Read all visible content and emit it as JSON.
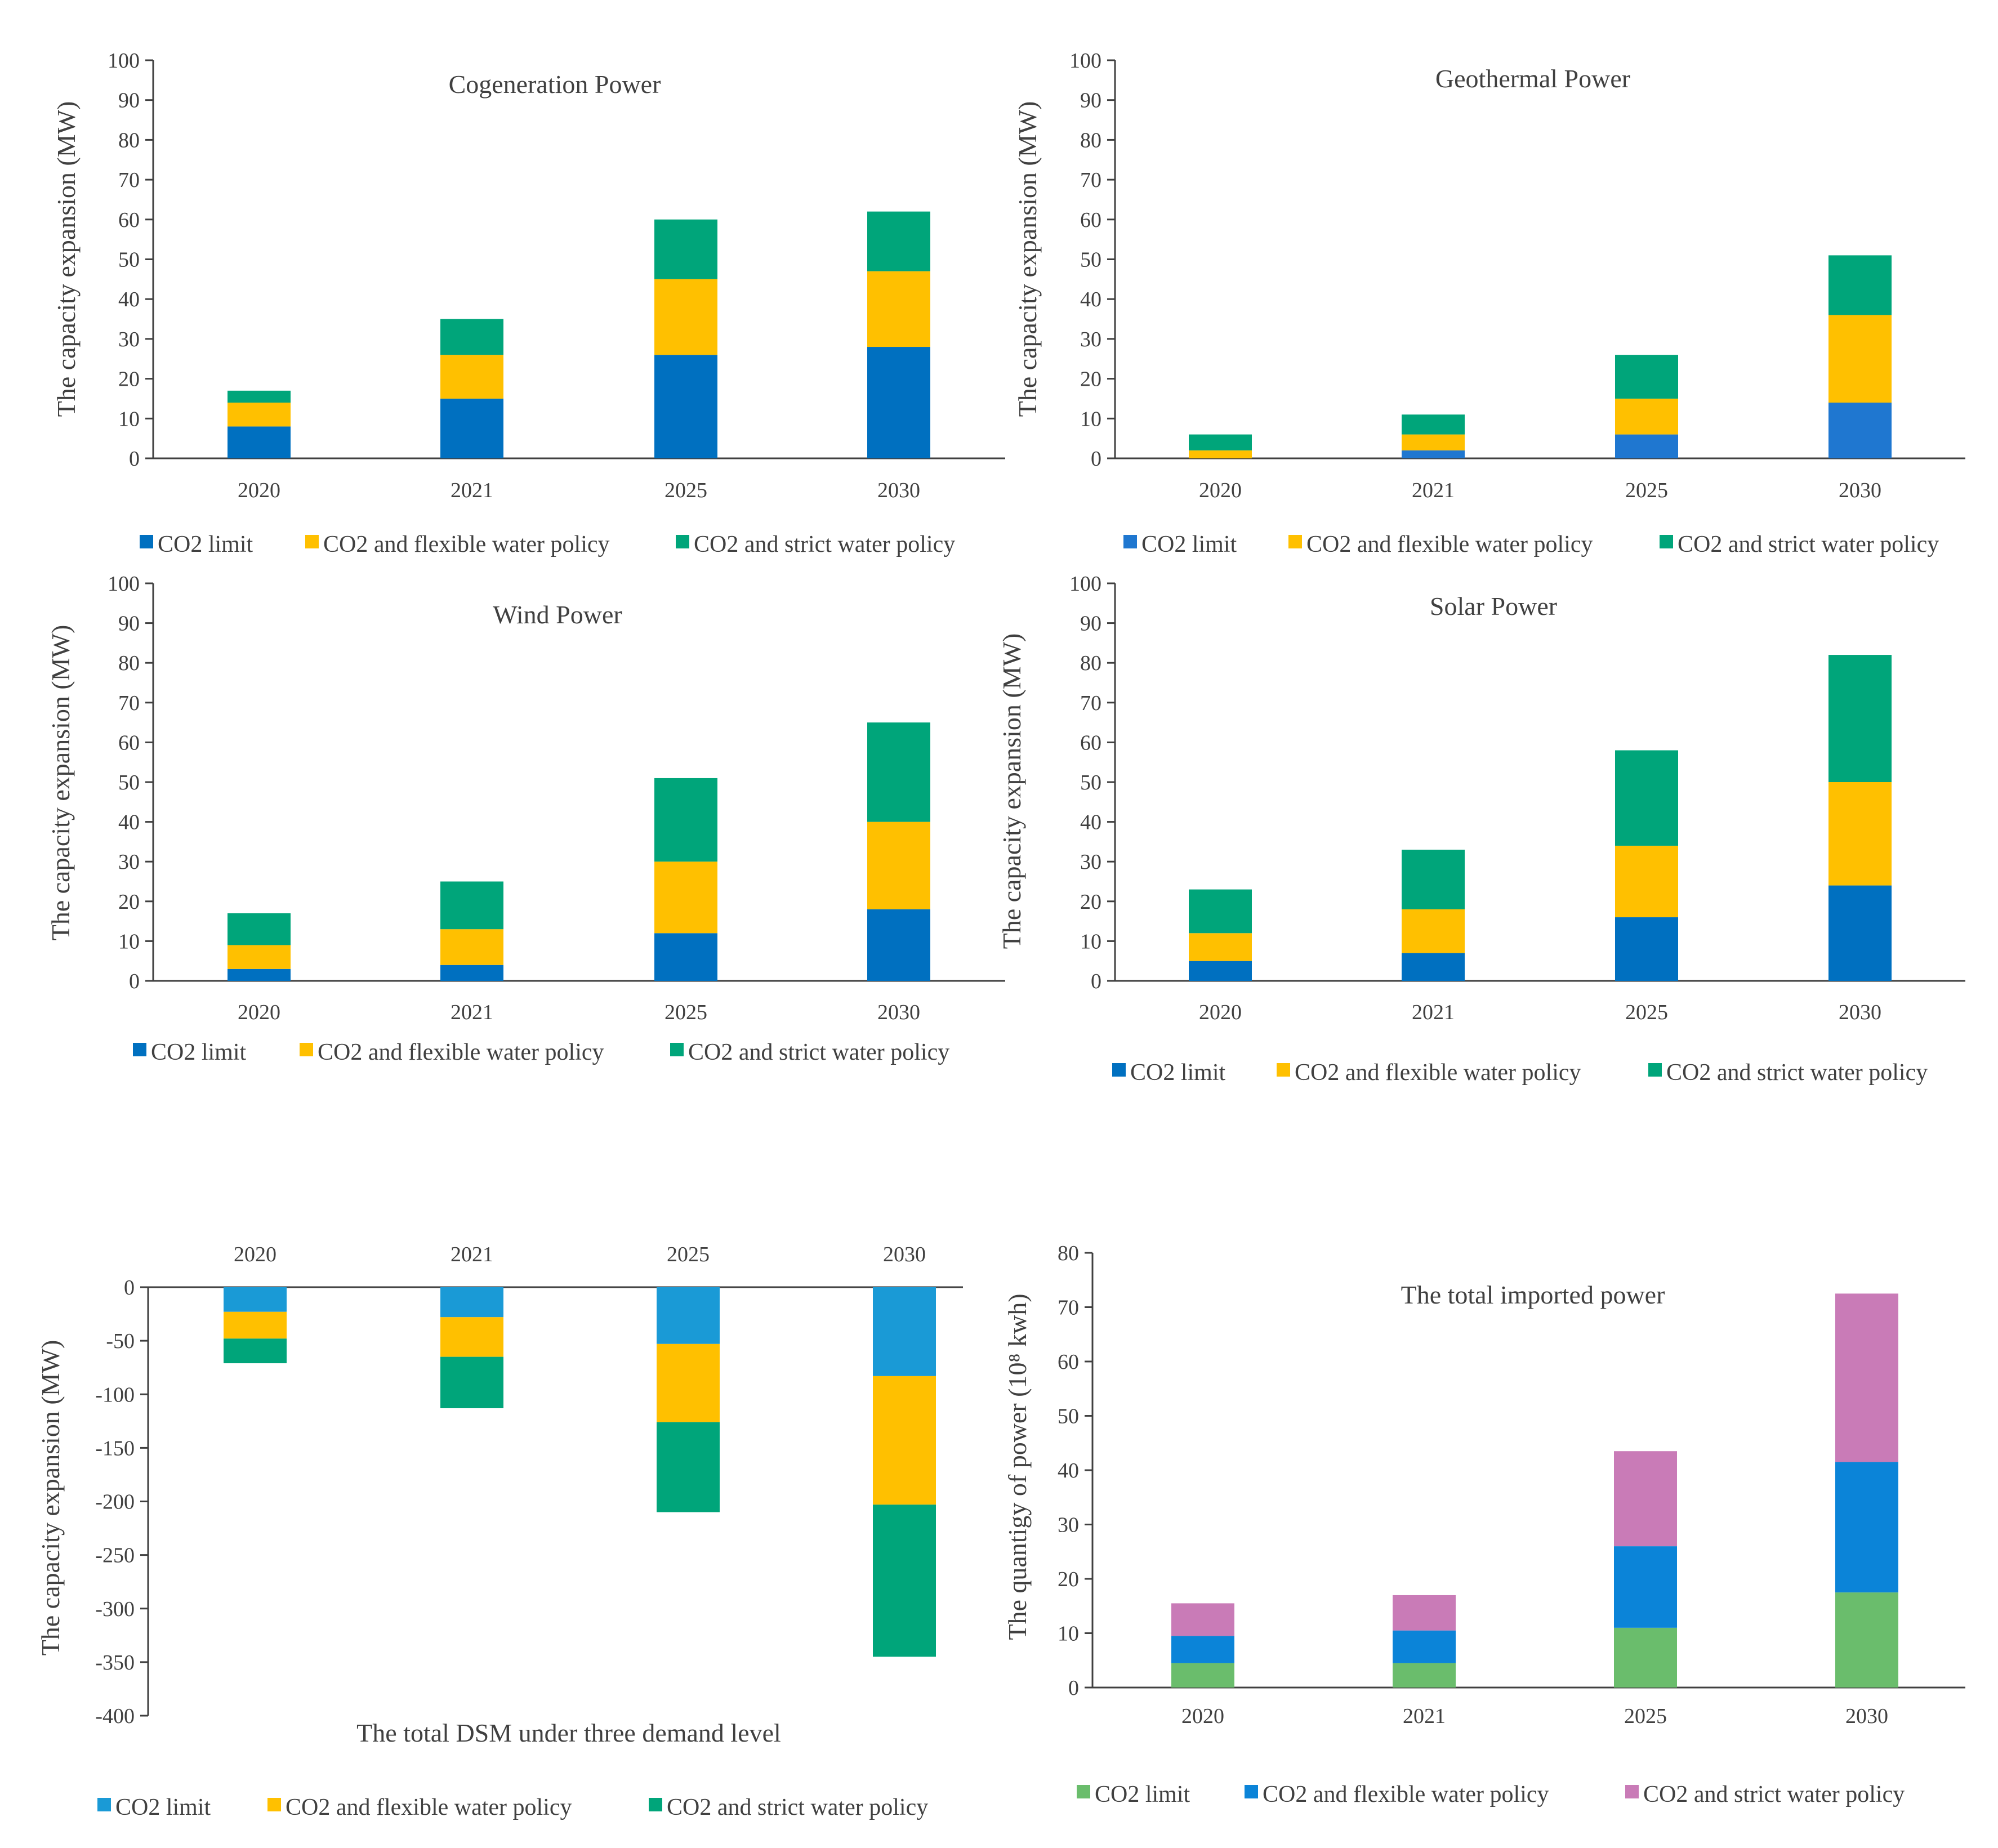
{
  "chart_data": [
    {
      "id": "cogeneration",
      "type": "bar",
      "stacked": true,
      "title": "Cogeneration Power",
      "ylabel": "The capacity expansion (MW)",
      "xlabel": "",
      "ylim": [
        0,
        100
      ],
      "yticks": [
        0,
        10,
        20,
        30,
        40,
        50,
        60,
        70,
        80,
        90,
        100
      ],
      "categories": [
        "2020",
        "2021",
        "2025",
        "2030"
      ],
      "series": [
        {
          "name": "CO2 limit",
          "color": "#0070c0",
          "values": [
            8,
            15,
            26,
            28
          ]
        },
        {
          "name": "CO2 and flexible water policy",
          "color": "#ffc000",
          "values": [
            6,
            11,
            19,
            19
          ]
        },
        {
          "name": "CO2 and strict water policy",
          "color": "#00a57a",
          "values": [
            3,
            9,
            15,
            15
          ]
        }
      ],
      "legend": "bottom"
    },
    {
      "id": "geothermal",
      "type": "bar",
      "stacked": true,
      "title": "Geothermal Power",
      "ylabel": "The capacity expansion (MW)",
      "xlabel": "",
      "ylim": [
        0,
        100
      ],
      "yticks": [
        0,
        10,
        20,
        30,
        40,
        50,
        60,
        70,
        80,
        90,
        100
      ],
      "categories": [
        "2020",
        "2021",
        "2025",
        "2030"
      ],
      "series": [
        {
          "name": "CO2 limit",
          "color": "#1f77d0",
          "values": [
            0,
            2,
            6,
            14
          ]
        },
        {
          "name": "CO2 and flexible water policy",
          "color": "#ffc000",
          "values": [
            2,
            4,
            9,
            22
          ]
        },
        {
          "name": "CO2 and strict water policy",
          "color": "#00a57a",
          "values": [
            4,
            5,
            11,
            15
          ]
        }
      ],
      "legend": "bottom"
    },
    {
      "id": "wind",
      "type": "bar",
      "stacked": true,
      "title": "Wind Power",
      "ylabel": "The capacity expansion (MW)",
      "xlabel": "",
      "ylim": [
        0,
        100
      ],
      "yticks": [
        0,
        10,
        20,
        30,
        40,
        50,
        60,
        70,
        80,
        90,
        100
      ],
      "categories": [
        "2020",
        "2021",
        "2025",
        "2030"
      ],
      "series": [
        {
          "name": "CO2 limit",
          "color": "#0070c0",
          "values": [
            3,
            4,
            12,
            18
          ]
        },
        {
          "name": "CO2 and flexible water policy",
          "color": "#ffc000",
          "values": [
            6,
            9,
            18,
            22
          ]
        },
        {
          "name": "CO2 and strict water policy",
          "color": "#00a57a",
          "values": [
            8,
            12,
            21,
            25
          ]
        }
      ],
      "legend": "bottom"
    },
    {
      "id": "solar",
      "type": "bar",
      "stacked": true,
      "title": "Solar Power",
      "ylabel": "The capacity expansion (MW)",
      "xlabel": "",
      "ylim": [
        0,
        100
      ],
      "yticks": [
        0,
        10,
        20,
        30,
        40,
        50,
        60,
        70,
        80,
        90,
        100
      ],
      "categories": [
        "2020",
        "2021",
        "2025",
        "2030"
      ],
      "series": [
        {
          "name": "CO2 limit",
          "color": "#0070c0",
          "values": [
            5,
            7,
            16,
            24
          ]
        },
        {
          "name": "CO2 and flexible water policy",
          "color": "#ffc000",
          "values": [
            7,
            11,
            18,
            26
          ]
        },
        {
          "name": "CO2 and strict water policy",
          "color": "#00a57a",
          "values": [
            11,
            15,
            24,
            32
          ]
        }
      ],
      "legend": "bottom"
    },
    {
      "id": "dsm",
      "type": "bar",
      "stacked": true,
      "title": "The total DSM under three demand level",
      "ylabel": "The capacity expansion (MW)",
      "xlabel": "",
      "ylim": [
        -400,
        0
      ],
      "yticks": [
        0,
        -50,
        -100,
        -150,
        -200,
        -250,
        -300,
        -350,
        -400
      ],
      "categories": [
        "2020",
        "2021",
        "2025",
        "2030"
      ],
      "series": [
        {
          "name": "CO2 limit",
          "color": "#1a9ad6",
          "values": [
            -23,
            -28,
            -53,
            -83
          ]
        },
        {
          "name": "CO2 and flexible water policy",
          "color": "#ffc000",
          "values": [
            -25,
            -37,
            -73,
            -120
          ]
        },
        {
          "name": "CO2 and strict water policy",
          "color": "#00a57a",
          "values": [
            -23,
            -48,
            -84,
            -142
          ]
        }
      ],
      "legend": "bottom"
    },
    {
      "id": "imported",
      "type": "bar",
      "stacked": true,
      "title": "The total imported power",
      "ylabel": "The quantigy of power (10⁸ kwh)",
      "xlabel": "",
      "ylim": [
        0,
        80
      ],
      "yticks": [
        0,
        10,
        20,
        30,
        40,
        50,
        60,
        70,
        80
      ],
      "categories": [
        "2020",
        "2021",
        "2025",
        "2030"
      ],
      "series": [
        {
          "name": "CO2 limit",
          "color": "#6abd6c",
          "values": [
            4.5,
            4.5,
            11,
            17.5
          ]
        },
        {
          "name": "CO2 and flexible water policy",
          "color": "#0b84d8",
          "values": [
            5,
            6,
            15,
            24
          ]
        },
        {
          "name": "CO2 and strict water policy",
          "color": "#c97bb7",
          "values": [
            6,
            6.5,
            17.5,
            31
          ]
        }
      ],
      "legend": "bottom"
    }
  ]
}
